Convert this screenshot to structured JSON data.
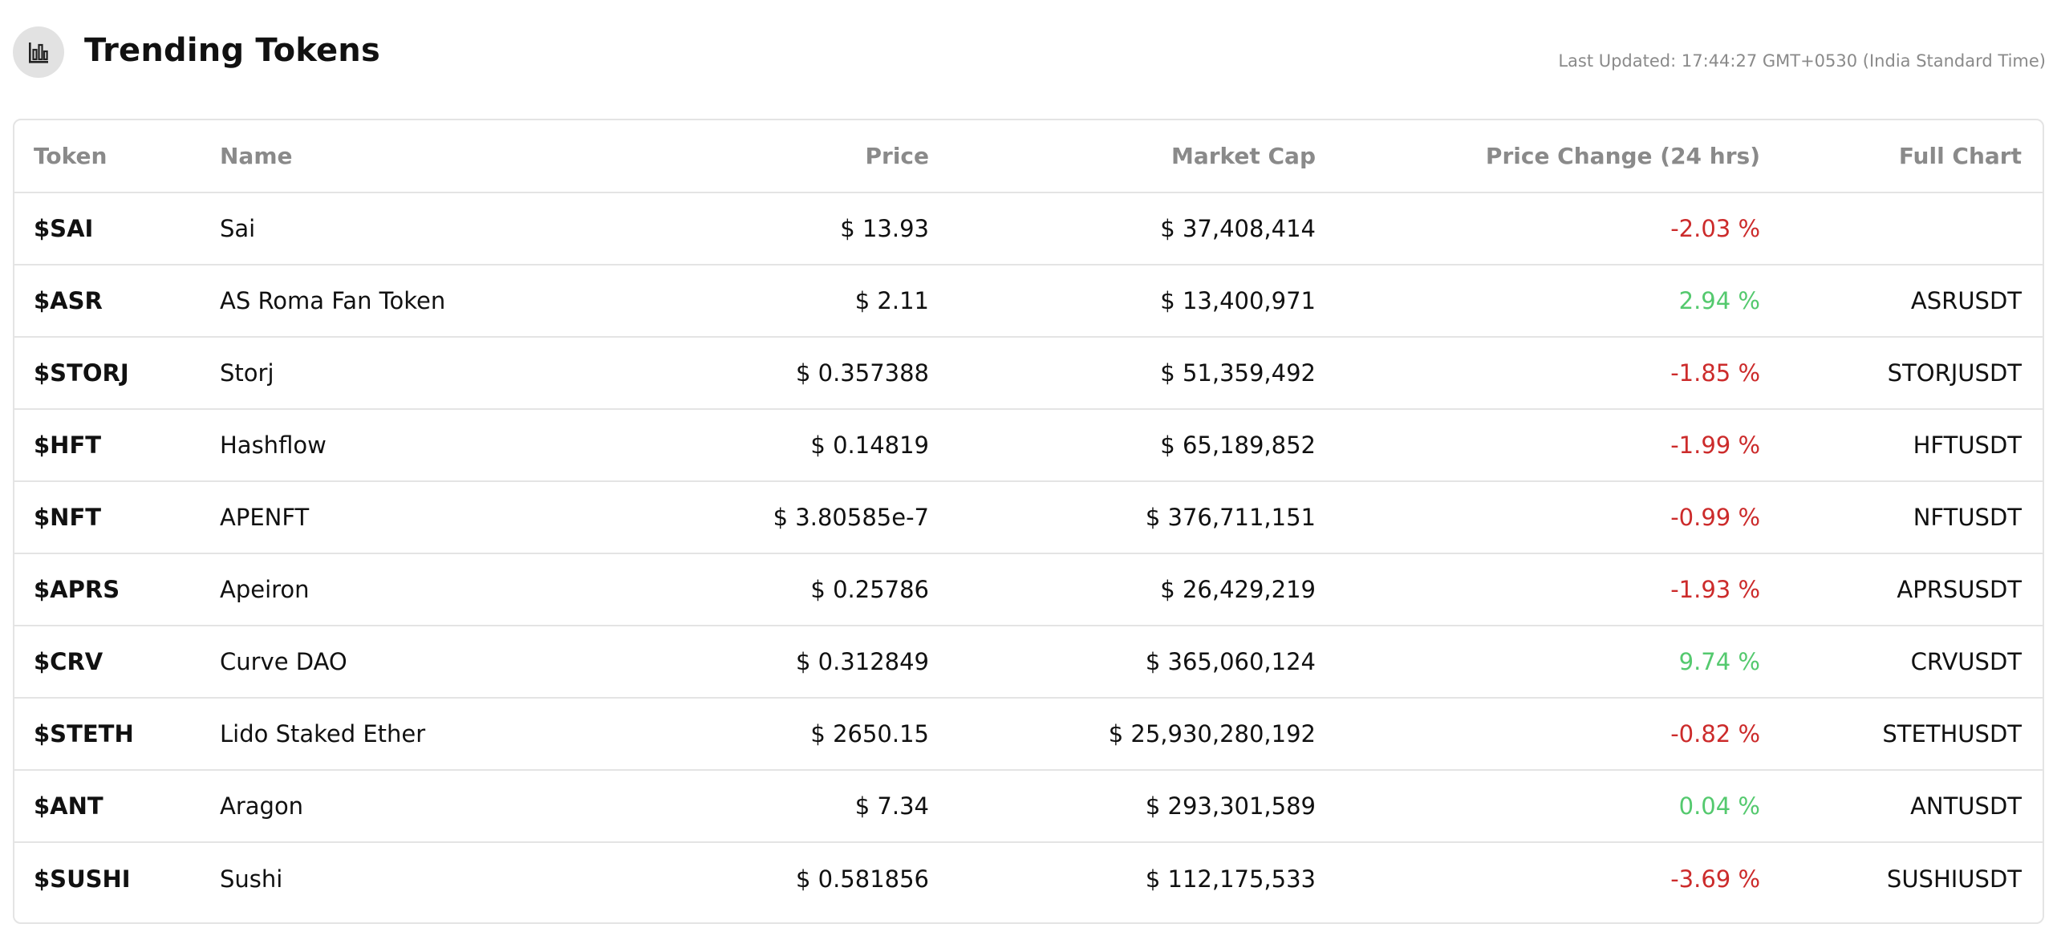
{
  "header": {
    "title": "Trending Tokens",
    "icon": "bar-chart-icon",
    "last_updated": "Last Updated: 17:44:27 GMT+0530 (India Standard Time)"
  },
  "colors": {
    "negative": "#cc2b2b",
    "positive": "#54c96e",
    "header_text": "#8a8a8a",
    "border": "#e4e4e4"
  },
  "table": {
    "columns": [
      "Token",
      "Name",
      "Price",
      "Market Cap",
      "Price Change (24 hrs)",
      "Full Chart"
    ],
    "rows": [
      {
        "token": "$SAI",
        "name": "Sai",
        "price": "$ 13.93",
        "market_cap": "$ 37,408,414",
        "change": "-2.03 %",
        "direction": "down",
        "chart": ""
      },
      {
        "token": "$ASR",
        "name": "AS Roma Fan Token",
        "price": "$ 2.11",
        "market_cap": "$ 13,400,971",
        "change": "2.94 %",
        "direction": "up",
        "chart": "ASRUSDT"
      },
      {
        "token": "$STORJ",
        "name": "Storj",
        "price": "$ 0.357388",
        "market_cap": "$ 51,359,492",
        "change": "-1.85 %",
        "direction": "down",
        "chart": "STORJUSDT"
      },
      {
        "token": "$HFT",
        "name": "Hashflow",
        "price": "$ 0.14819",
        "market_cap": "$ 65,189,852",
        "change": "-1.99 %",
        "direction": "down",
        "chart": "HFTUSDT"
      },
      {
        "token": "$NFT",
        "name": "APENFT",
        "price": "$ 3.80585e-7",
        "market_cap": "$ 376,711,151",
        "change": "-0.99 %",
        "direction": "down",
        "chart": "NFTUSDT"
      },
      {
        "token": "$APRS",
        "name": "Apeiron",
        "price": "$ 0.25786",
        "market_cap": "$ 26,429,219",
        "change": "-1.93 %",
        "direction": "down",
        "chart": "APRSUSDT"
      },
      {
        "token": "$CRV",
        "name": "Curve DAO",
        "price": "$ 0.312849",
        "market_cap": "$ 365,060,124",
        "change": "9.74 %",
        "direction": "up",
        "chart": "CRVUSDT"
      },
      {
        "token": "$STETH",
        "name": "Lido Staked Ether",
        "price": "$ 2650.15",
        "market_cap": "$ 25,930,280,192",
        "change": "-0.82 %",
        "direction": "down",
        "chart": "STETHUSDT"
      },
      {
        "token": "$ANT",
        "name": "Aragon",
        "price": "$ 7.34",
        "market_cap": "$ 293,301,589",
        "change": "0.04 %",
        "direction": "up",
        "chart": "ANTUSDT"
      },
      {
        "token": "$SUSHI",
        "name": "Sushi",
        "price": "$ 0.581856",
        "market_cap": "$ 112,175,533",
        "change": "-3.69 %",
        "direction": "down",
        "chart": "SUSHIUSDT"
      }
    ]
  }
}
